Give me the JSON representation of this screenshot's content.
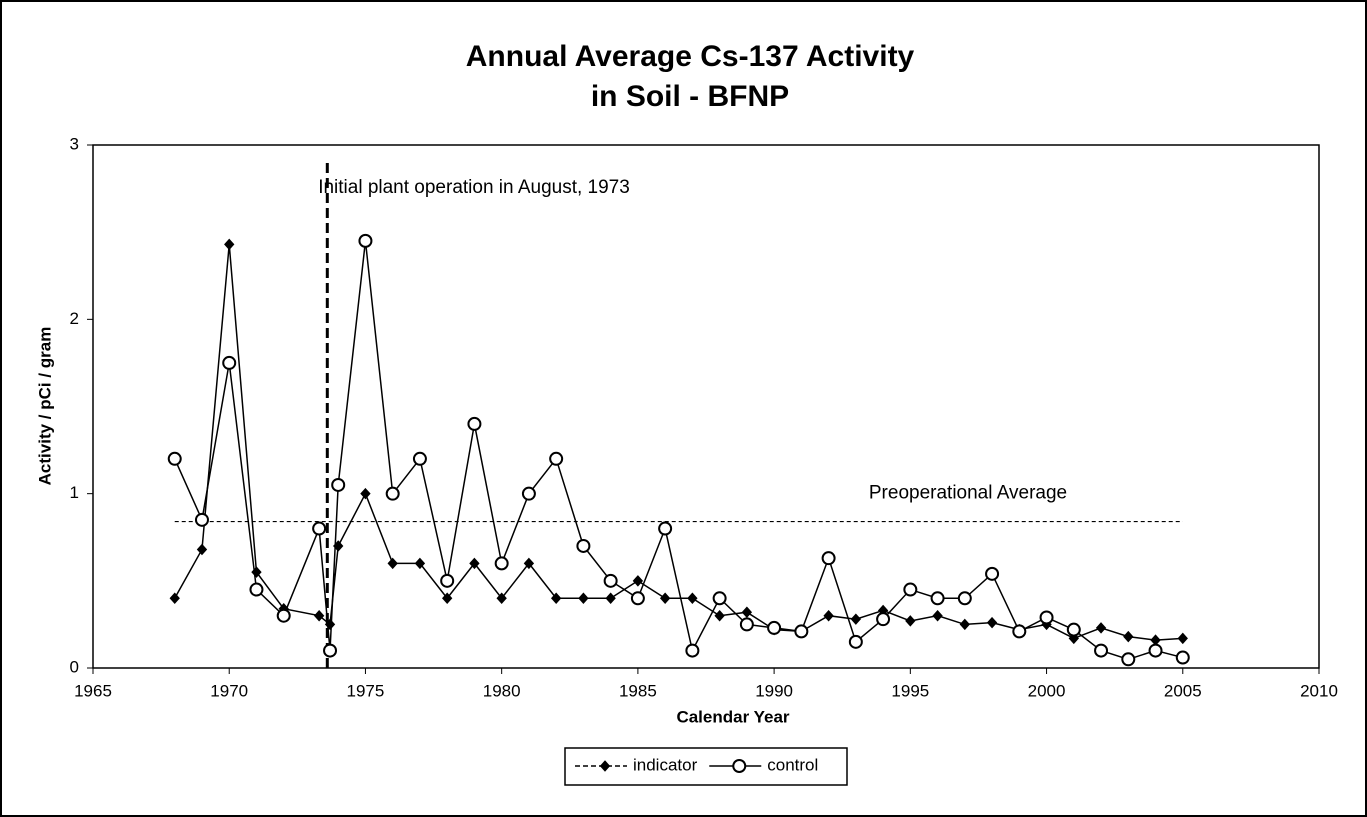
{
  "chart_data": {
    "type": "line",
    "title": "Annual Average Cs-137 Activity",
    "subtitle": "in Soil - BFNP",
    "x_label": "Calendar Year",
    "y_label": "Activity  /  pCi / gram",
    "x": [
      1968,
      1969,
      1970,
      1971,
      1972,
      1973.3,
      1973.7,
      1974,
      1975,
      1976,
      1977,
      1978,
      1979,
      1980,
      1981,
      1982,
      1983,
      1984,
      1985,
      1986,
      1987,
      1988,
      1989,
      1990,
      1991,
      1992,
      1993,
      1994,
      1995,
      1996,
      1997,
      1998,
      1999,
      2000,
      2001,
      2002,
      2003,
      2004,
      2005
    ],
    "series": [
      {
        "name": "indicator",
        "color": "#000000",
        "marker": "diamond",
        "values": [
          0.4,
          0.68,
          2.43,
          0.55,
          0.34,
          0.3,
          0.25,
          0.7,
          1.0,
          0.6,
          0.6,
          0.4,
          0.6,
          0.4,
          0.6,
          0.4,
          0.4,
          0.4,
          0.5,
          0.4,
          0.4,
          0.3,
          0.32,
          0.22,
          0.21,
          0.3,
          0.28,
          0.33,
          0.27,
          0.3,
          0.25,
          0.26,
          0.22,
          0.25,
          0.17,
          0.23,
          0.18,
          0.16,
          0.17
        ]
      },
      {
        "name": "control",
        "color": "#000000",
        "marker": "circle",
        "values": [
          1.2,
          0.85,
          1.75,
          0.45,
          0.3,
          0.8,
          0.1,
          1.05,
          2.45,
          1.0,
          1.2,
          0.5,
          1.4,
          0.6,
          1.0,
          1.2,
          0.7,
          0.5,
          0.4,
          0.8,
          0.1,
          0.4,
          0.25,
          0.23,
          0.21,
          0.63,
          0.15,
          0.28,
          0.45,
          0.4,
          0.4,
          0.54,
          0.21,
          0.29,
          0.22,
          0.1,
          0.05,
          0.1,
          0.06
        ]
      }
    ],
    "xlim": [
      1965,
      2010
    ],
    "xticks": [
      1965,
      1970,
      1975,
      1980,
      1985,
      1990,
      1995,
      2000,
      2005,
      2010
    ],
    "ylim": [
      0,
      3
    ],
    "yticks": [
      0,
      1,
      2,
      3
    ],
    "grid": false,
    "legend": "bottom",
    "vertical_line": {
      "value": 1973.6,
      "label": "Initial plant operation in August, 1973"
    },
    "reference_line": {
      "value": 0.84,
      "label": "Preoperational Average"
    }
  }
}
